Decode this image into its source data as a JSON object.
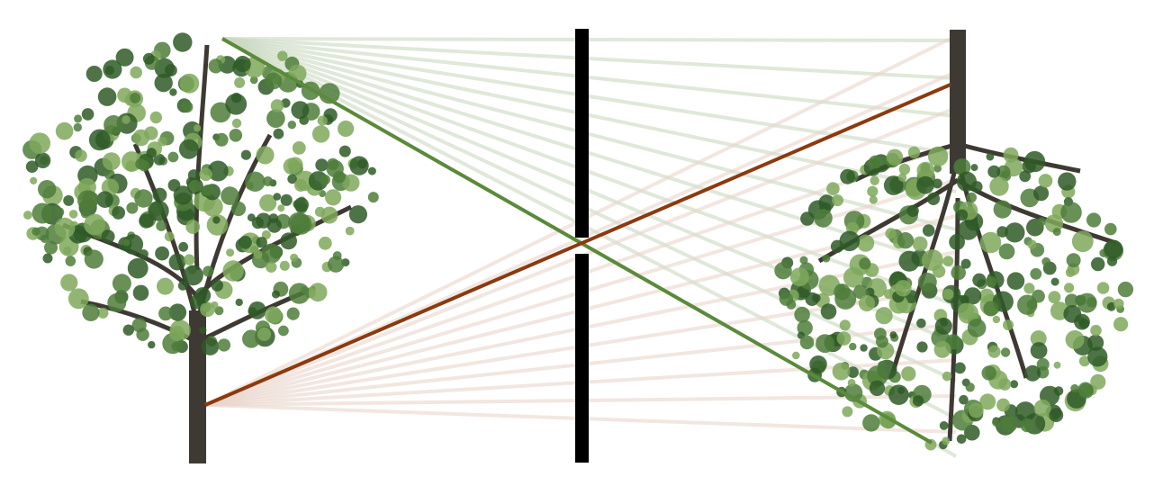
{
  "diagram": {
    "colors": {
      "background": "#ffffff",
      "crown_ray": "#5a8a3a",
      "trunk_ray": "#8b3a0f",
      "faint_crown_ray": "#c9d8bf",
      "faint_trunk_ray": "#ead6cc",
      "barrier": "#000000",
      "foliage_dark": "#2f5a27",
      "foliage_mid": "#4e7d3a",
      "foliage_light": "#7fa85c",
      "bark": "#3e3a33"
    },
    "icons": {
      "object": "upright-tree-icon",
      "image": "inverted-tree-icon"
    }
  }
}
